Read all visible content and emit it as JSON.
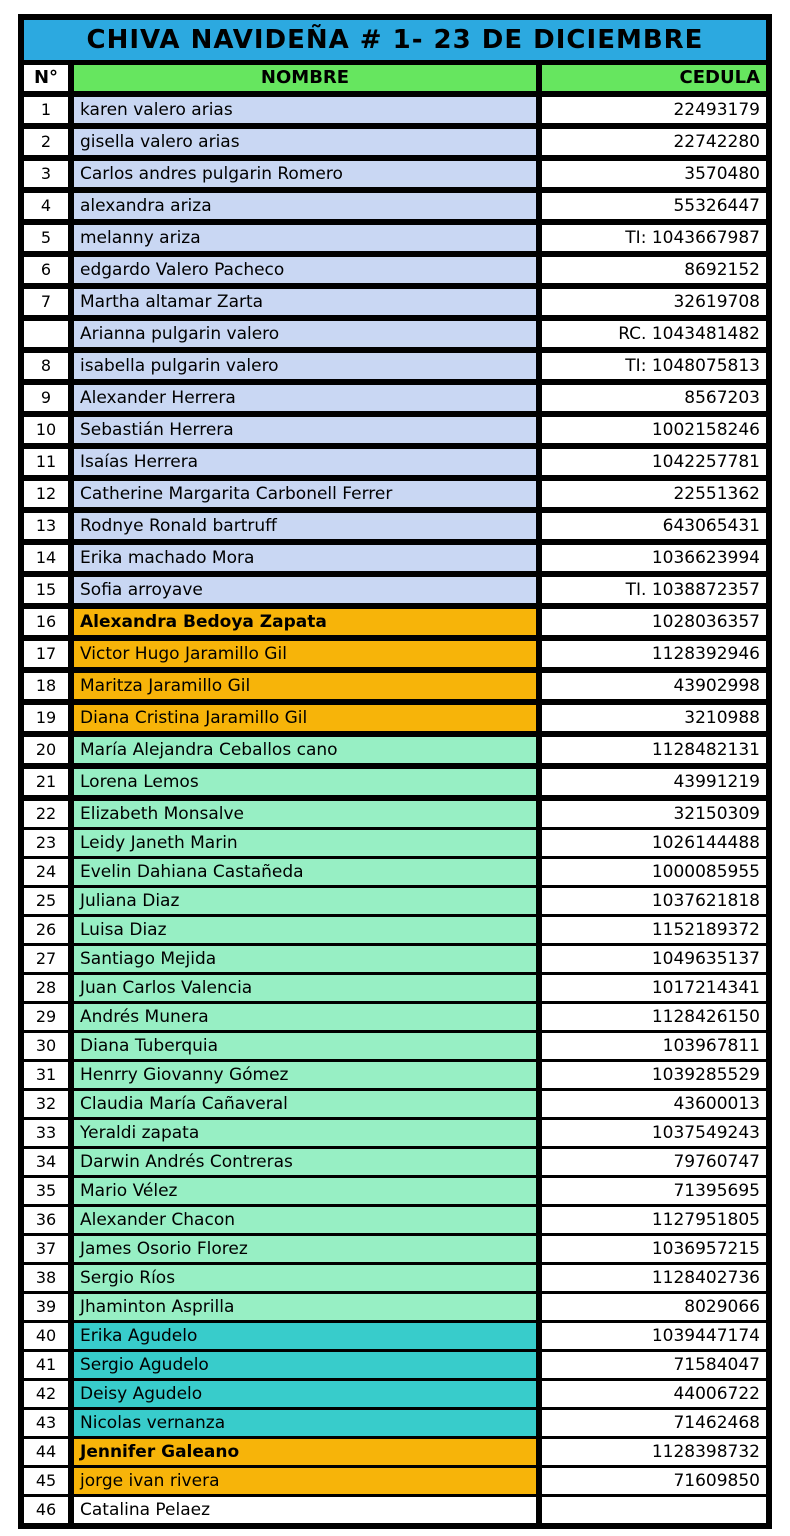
{
  "title": "CHIVA NAVIDEÑA # 1- 23 DE DICIEMBRE",
  "columns": {
    "num": "N°",
    "name": "NOMBRE",
    "cedula": "CEDULA"
  },
  "colors": {
    "title_bg": "#2CA9E0",
    "header_bg": "#66E65F",
    "grid": "#000000",
    "blue": "#C9D7F3",
    "orange": "#F7B409",
    "mint": "#97EFC4",
    "teal": "#38CCCB",
    "white": "#FFFFFF"
  },
  "rows": [
    {
      "num": "1",
      "name": "karen valero arias",
      "cedula": "22493179",
      "color": "blue",
      "bold": false
    },
    {
      "num": "2",
      "name": "gisella valero arias",
      "cedula": "22742280",
      "color": "blue",
      "bold": false
    },
    {
      "num": "3",
      "name": "Carlos andres pulgarin Romero",
      "cedula": "3570480",
      "color": "blue",
      "bold": false
    },
    {
      "num": "4",
      "name": "alexandra ariza",
      "cedula": "55326447",
      "color": "blue",
      "bold": false
    },
    {
      "num": "5",
      "name": "melanny ariza",
      "cedula": "TI: 1043667987",
      "color": "blue",
      "bold": false
    },
    {
      "num": "6",
      "name": "edgardo Valero Pacheco",
      "cedula": "8692152",
      "color": "blue",
      "bold": false
    },
    {
      "num": "7",
      "name": "Martha altamar Zarta",
      "cedula": "32619708",
      "color": "blue",
      "bold": false
    },
    {
      "num": "",
      "name": "Arianna pulgarin valero",
      "cedula": "RC. 1043481482",
      "color": "blue",
      "bold": false
    },
    {
      "num": "8",
      "name": "isabella pulgarin valero",
      "cedula": "TI: 1048075813",
      "color": "blue",
      "bold": false
    },
    {
      "num": "9",
      "name": "Alexander Herrera",
      "cedula": "8567203",
      "color": "blue",
      "bold": false
    },
    {
      "num": "10",
      "name": "Sebastián Herrera",
      "cedula": "1002158246",
      "color": "blue",
      "bold": false
    },
    {
      "num": "11",
      "name": "Isaías Herrera",
      "cedula": "1042257781",
      "color": "blue",
      "bold": false
    },
    {
      "num": "12",
      "name": "Catherine Margarita Carbonell Ferrer",
      "cedula": "22551362",
      "color": "blue",
      "bold": false
    },
    {
      "num": "13",
      "name": "Rodnye Ronald bartruff",
      "cedula": "643065431",
      "color": "blue",
      "bold": false
    },
    {
      "num": "14",
      "name": "Erika machado Mora",
      "cedula": "1036623994",
      "color": "blue",
      "bold": false
    },
    {
      "num": "15",
      "name": "Sofia arroyave",
      "cedula": "TI. 1038872357",
      "color": "blue",
      "bold": false
    },
    {
      "num": "16",
      "name": "Alexandra Bedoya Zapata",
      "cedula": "1028036357",
      "color": "orange",
      "bold": true
    },
    {
      "num": "17",
      "name": "Victor Hugo Jaramillo Gil",
      "cedula": "1128392946",
      "color": "orange",
      "bold": false
    },
    {
      "num": "18",
      "name": "Maritza Jaramillo Gil",
      "cedula": "43902998",
      "color": "orange",
      "bold": false
    },
    {
      "num": "19",
      "name": "Diana Cristina Jaramillo Gil",
      "cedula": "3210988",
      "color": "orange",
      "bold": false
    },
    {
      "num": "20",
      "name": "María Alejandra Ceballos cano",
      "cedula": "1128482131",
      "color": "mint",
      "bold": false
    },
    {
      "num": "21",
      "name": "Lorena Lemos",
      "cedula": "43991219",
      "color": "mint",
      "bold": false
    },
    {
      "num": "22",
      "name": "Elizabeth Monsalve",
      "cedula": "32150309",
      "color": "mint",
      "bold": false
    },
    {
      "num": "23",
      "name": "Leidy Janeth Marin",
      "cedula": "1026144488",
      "color": "mint",
      "bold": false
    },
    {
      "num": "24",
      "name": "Evelin Dahiana Castañeda",
      "cedula": "1000085955",
      "color": "mint",
      "bold": false
    },
    {
      "num": "25",
      "name": "Juliana Diaz",
      "cedula": "1037621818",
      "color": "mint",
      "bold": false
    },
    {
      "num": "26",
      "name": "Luisa Diaz",
      "cedula": "1152189372",
      "color": "mint",
      "bold": false
    },
    {
      "num": "27",
      "name": "Santiago Mejida",
      "cedula": "1049635137",
      "color": "mint",
      "bold": false
    },
    {
      "num": "28",
      "name": "Juan Carlos Valencia",
      "cedula": "1017214341",
      "color": "mint",
      "bold": false
    },
    {
      "num": "29",
      "name": "Andrés Munera",
      "cedula": "1128426150",
      "color": "mint",
      "bold": false
    },
    {
      "num": "30",
      "name": "Diana Tuberquia",
      "cedula": "103967811",
      "color": "mint",
      "bold": false
    },
    {
      "num": "31",
      "name": "Henrry Giovanny Gómez",
      "cedula": "1039285529",
      "color": "mint",
      "bold": false
    },
    {
      "num": "32",
      "name": "Claudia María Cañaveral",
      "cedula": "43600013",
      "color": "mint",
      "bold": false
    },
    {
      "num": "33",
      "name": "Yeraldi zapata",
      "cedula": "1037549243",
      "color": "mint",
      "bold": false
    },
    {
      "num": "34",
      "name": "Darwin Andrés Contreras",
      "cedula": "79760747",
      "color": "mint",
      "bold": false
    },
    {
      "num": "35",
      "name": "Mario Vélez",
      "cedula": "71395695",
      "color": "mint",
      "bold": false
    },
    {
      "num": "36",
      "name": "Alexander Chacon",
      "cedula": "1127951805",
      "color": "mint",
      "bold": false
    },
    {
      "num": "37",
      "name": "James Osorio Florez",
      "cedula": "1036957215",
      "color": "mint",
      "bold": false
    },
    {
      "num": "38",
      "name": "Sergio Ríos",
      "cedula": "1128402736",
      "color": "mint",
      "bold": false
    },
    {
      "num": "39",
      "name": "Jhaminton Asprilla",
      "cedula": "8029066",
      "color": "mint",
      "bold": false
    },
    {
      "num": "40",
      "name": "Erika Agudelo",
      "cedula": "1039447174",
      "color": "teal",
      "bold": false
    },
    {
      "num": "41",
      "name": "Sergio Agudelo",
      "cedula": "71584047",
      "color": "teal",
      "bold": false
    },
    {
      "num": "42",
      "name": "Deisy Agudelo",
      "cedula": "44006722",
      "color": "teal",
      "bold": false
    },
    {
      "num": "43",
      "name": "Nicolas vernanza",
      "cedula": "71462468",
      "color": "teal",
      "bold": false
    },
    {
      "num": "44",
      "name": "Jennifer Galeano",
      "cedula": "1128398732",
      "color": "orange",
      "bold": true
    },
    {
      "num": "45",
      "name": "jorge ivan rivera",
      "cedula": "71609850",
      "color": "orange",
      "bold": false
    },
    {
      "num": "46",
      "name": "Catalina Pelaez",
      "cedula": "",
      "color": "white",
      "bold": false
    }
  ]
}
